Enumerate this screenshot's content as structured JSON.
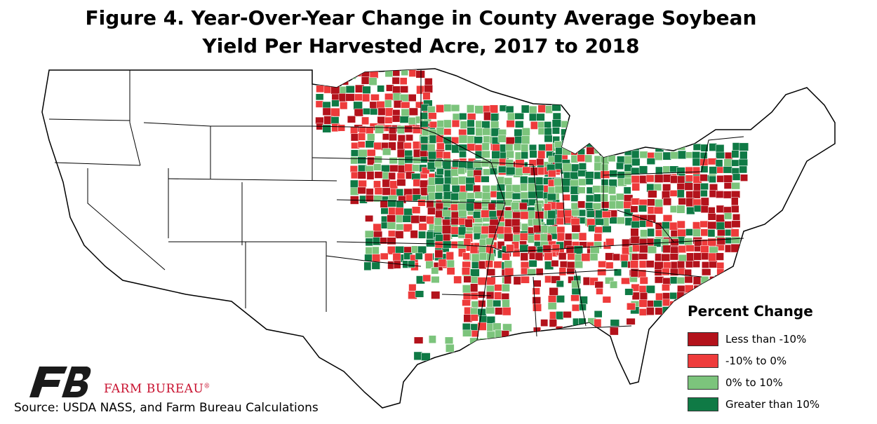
{
  "title": {
    "line1": "Figure 4. Year-Over-Year Change in County Average Soybean",
    "line2": "Yield Per Harvested Acre, 2017 to 2018"
  },
  "map": {
    "subject": "Contiguous United States",
    "state_border_color": "#000000",
    "state_fill": "#ffffff"
  },
  "legend": {
    "title": "Percent Change",
    "items": [
      {
        "label": "Less than -10%",
        "color": "#b3121b"
      },
      {
        "label": "-10% to 0%",
        "color": "#ee3b3b"
      },
      {
        "label": "0% to 10%",
        "color": "#7cc47c"
      },
      {
        "label": "Greater than 10%",
        "color": "#0f7a45"
      }
    ]
  },
  "brand": {
    "name": "FARM BUREAU",
    "mark": "®",
    "logo_icon": "farm-bureau-fb-logo"
  },
  "source": "Source: USDA NASS, and Farm Bureau Calculations"
}
